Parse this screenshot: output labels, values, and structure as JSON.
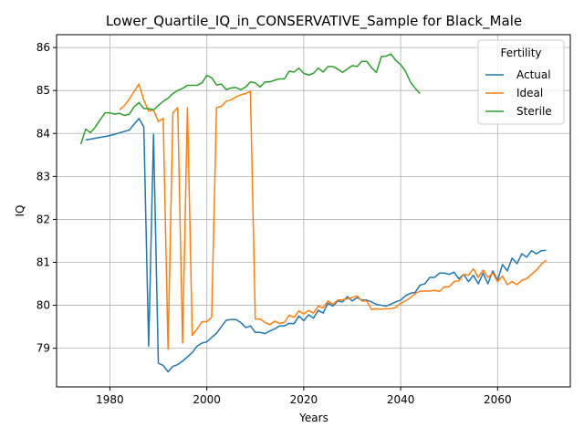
{
  "chart_data": {
    "type": "line",
    "title": "Lower_Quartile_IQ_in_CONSERVATIVE_Sample for Black_Male",
    "xlabel": "Years",
    "ylabel": "IQ",
    "xlim": [
      1969,
      2075
    ],
    "ylim": [
      78.1,
      86.3
    ],
    "xticks": [
      1980,
      2000,
      2020,
      2040,
      2060
    ],
    "yticks": [
      79,
      80,
      81,
      82,
      83,
      84,
      85,
      86
    ],
    "grid": true,
    "legend": {
      "title": "Fertility",
      "placement": "top-right"
    },
    "series": [
      {
        "name": "Actual",
        "color": "#1f77b4",
        "points": [
          [
            1975,
            83.85
          ],
          [
            1980,
            83.95
          ],
          [
            1984,
            84.08
          ],
          [
            1986,
            84.35
          ],
          [
            1987,
            84.15
          ],
          [
            1988,
            79.05
          ],
          [
            1989,
            83.98
          ],
          [
            1990,
            78.65
          ],
          [
            1991,
            78.6
          ],
          [
            1992,
            78.45
          ],
          [
            1993,
            78.58
          ],
          [
            1994,
            78.62
          ],
          [
            1995,
            78.7
          ],
          [
            1996,
            78.8
          ],
          [
            1997,
            78.9
          ],
          [
            1998,
            79.05
          ],
          [
            1999,
            79.12
          ],
          [
            2000,
            79.15
          ],
          [
            2001,
            79.25
          ],
          [
            2002,
            79.35
          ],
          [
            2003,
            79.5
          ],
          [
            2004,
            79.65
          ],
          [
            2005,
            79.67
          ],
          [
            2006,
            79.67
          ],
          [
            2007,
            79.6
          ],
          [
            2008,
            79.48
          ],
          [
            2009,
            79.52
          ],
          [
            2010,
            79.37
          ],
          [
            2011,
            79.37
          ],
          [
            2012,
            79.34
          ],
          [
            2013,
            79.4
          ],
          [
            2014,
            79.45
          ],
          [
            2015,
            79.52
          ],
          [
            2016,
            79.52
          ],
          [
            2017,
            79.58
          ],
          [
            2018,
            79.57
          ],
          [
            2019,
            79.75
          ],
          [
            2020,
            79.64
          ],
          [
            2021,
            79.78
          ],
          [
            2022,
            79.7
          ],
          [
            2023,
            79.88
          ],
          [
            2024,
            79.82
          ],
          [
            2025,
            80.05
          ],
          [
            2026,
            79.98
          ],
          [
            2027,
            80.1
          ],
          [
            2028,
            80.08
          ],
          [
            2029,
            80.2
          ],
          [
            2030,
            80.1
          ],
          [
            2031,
            80.18
          ],
          [
            2032,
            80.12
          ],
          [
            2033,
            80.12
          ],
          [
            2034,
            80.08
          ],
          [
            2035,
            80.02
          ],
          [
            2036,
            80.0
          ],
          [
            2037,
            79.98
          ],
          [
            2038,
            80.03
          ],
          [
            2039,
            80.08
          ],
          [
            2040,
            80.12
          ],
          [
            2041,
            80.22
          ],
          [
            2042,
            80.28
          ],
          [
            2043,
            80.3
          ],
          [
            2044,
            80.47
          ],
          [
            2045,
            80.5
          ],
          [
            2046,
            80.65
          ],
          [
            2047,
            80.65
          ],
          [
            2048,
            80.75
          ],
          [
            2049,
            80.75
          ],
          [
            2050,
            80.72
          ],
          [
            2051,
            80.77
          ],
          [
            2052,
            80.62
          ],
          [
            2053,
            80.72
          ],
          [
            2054,
            80.55
          ],
          [
            2055,
            80.7
          ],
          [
            2056,
            80.5
          ],
          [
            2057,
            80.75
          ],
          [
            2058,
            80.5
          ],
          [
            2059,
            80.8
          ],
          [
            2060,
            80.58
          ],
          [
            2061,
            80.95
          ],
          [
            2062,
            80.8
          ],
          [
            2063,
            81.1
          ],
          [
            2064,
            80.97
          ],
          [
            2065,
            81.2
          ],
          [
            2066,
            81.12
          ],
          [
            2067,
            81.27
          ],
          [
            2068,
            81.2
          ],
          [
            2069,
            81.27
          ],
          [
            2070,
            81.28
          ]
        ]
      },
      {
        "name": "Ideal",
        "color": "#ff7f0e",
        "points": [
          [
            1982,
            84.55
          ],
          [
            1983,
            84.65
          ],
          [
            1984,
            84.8
          ],
          [
            1985,
            84.98
          ],
          [
            1986,
            85.15
          ],
          [
            1987,
            84.78
          ],
          [
            1988,
            84.52
          ],
          [
            1989,
            84.55
          ],
          [
            1990,
            84.28
          ],
          [
            1991,
            84.35
          ],
          [
            1992,
            78.98
          ],
          [
            1993,
            84.48
          ],
          [
            1994,
            84.6
          ],
          [
            1995,
            79.12
          ],
          [
            1996,
            84.6
          ],
          [
            1997,
            79.3
          ],
          [
            1998,
            79.45
          ],
          [
            1999,
            79.62
          ],
          [
            2000,
            79.62
          ],
          [
            2001,
            79.72
          ],
          [
            2002,
            84.6
          ],
          [
            2003,
            84.63
          ],
          [
            2004,
            84.75
          ],
          [
            2005,
            84.78
          ],
          [
            2006,
            84.85
          ],
          [
            2007,
            84.9
          ],
          [
            2008,
            84.93
          ],
          [
            2009,
            84.98
          ],
          [
            2010,
            79.68
          ],
          [
            2011,
            79.68
          ],
          [
            2012,
            79.6
          ],
          [
            2013,
            79.55
          ],
          [
            2014,
            79.63
          ],
          [
            2015,
            79.58
          ],
          [
            2016,
            79.6
          ],
          [
            2017,
            79.77
          ],
          [
            2018,
            79.72
          ],
          [
            2019,
            79.87
          ],
          [
            2020,
            79.8
          ],
          [
            2021,
            79.88
          ],
          [
            2022,
            79.82
          ],
          [
            2023,
            79.98
          ],
          [
            2024,
            79.94
          ],
          [
            2025,
            80.1
          ],
          [
            2026,
            80.02
          ],
          [
            2027,
            80.12
          ],
          [
            2028,
            80.13
          ],
          [
            2029,
            80.15
          ],
          [
            2030,
            80.18
          ],
          [
            2031,
            80.22
          ],
          [
            2032,
            80.1
          ],
          [
            2033,
            80.1
          ],
          [
            2034,
            79.9
          ],
          [
            2035,
            79.92
          ],
          [
            2036,
            79.91
          ],
          [
            2037,
            79.92
          ],
          [
            2038,
            79.92
          ],
          [
            2039,
            79.95
          ],
          [
            2040,
            80.05
          ],
          [
            2041,
            80.1
          ],
          [
            2042,
            80.18
          ],
          [
            2043,
            80.27
          ],
          [
            2044,
            80.33
          ],
          [
            2045,
            80.33
          ],
          [
            2046,
            80.33
          ],
          [
            2047,
            80.35
          ],
          [
            2048,
            80.32
          ],
          [
            2049,
            80.43
          ],
          [
            2050,
            80.43
          ],
          [
            2051,
            80.55
          ],
          [
            2052,
            80.57
          ],
          [
            2053,
            80.72
          ],
          [
            2054,
            80.7
          ],
          [
            2055,
            80.85
          ],
          [
            2056,
            80.65
          ],
          [
            2057,
            80.82
          ],
          [
            2058,
            80.65
          ],
          [
            2059,
            80.75
          ],
          [
            2060,
            80.55
          ],
          [
            2061,
            80.68
          ],
          [
            2062,
            80.48
          ],
          [
            2063,
            80.55
          ],
          [
            2064,
            80.48
          ],
          [
            2065,
            80.58
          ],
          [
            2066,
            80.62
          ],
          [
            2067,
            80.72
          ],
          [
            2068,
            80.82
          ],
          [
            2069,
            80.95
          ],
          [
            2070,
            81.05
          ]
        ]
      },
      {
        "name": "Sterile",
        "color": "#2ca02c",
        "points": [
          [
            1974,
            83.75
          ],
          [
            1975,
            84.1
          ],
          [
            1976,
            84.02
          ],
          [
            1977,
            84.15
          ],
          [
            1978,
            84.32
          ],
          [
            1979,
            84.48
          ],
          [
            1980,
            84.48
          ],
          [
            1981,
            84.45
          ],
          [
            1982,
            84.47
          ],
          [
            1983,
            84.42
          ],
          [
            1984,
            84.45
          ],
          [
            1985,
            84.62
          ],
          [
            1986,
            84.72
          ],
          [
            1987,
            84.58
          ],
          [
            1988,
            84.58
          ],
          [
            1989,
            84.55
          ],
          [
            1990,
            84.65
          ],
          [
            1991,
            84.75
          ],
          [
            1992,
            84.82
          ],
          [
            1993,
            84.93
          ],
          [
            1994,
            85.0
          ],
          [
            1995,
            85.05
          ],
          [
            1996,
            85.12
          ],
          [
            1997,
            85.12
          ],
          [
            1998,
            85.12
          ],
          [
            1999,
            85.18
          ],
          [
            2000,
            85.35
          ],
          [
            2001,
            85.3
          ],
          [
            2002,
            85.13
          ],
          [
            2003,
            85.15
          ],
          [
            2004,
            85.02
          ],
          [
            2005,
            85.06
          ],
          [
            2006,
            85.07
          ],
          [
            2007,
            85.02
          ],
          [
            2008,
            85.08
          ],
          [
            2009,
            85.2
          ],
          [
            2010,
            85.18
          ],
          [
            2011,
            85.08
          ],
          [
            2012,
            85.2
          ],
          [
            2013,
            85.2
          ],
          [
            2014,
            85.24
          ],
          [
            2015,
            85.27
          ],
          [
            2016,
            85.27
          ],
          [
            2017,
            85.45
          ],
          [
            2018,
            85.43
          ],
          [
            2019,
            85.52
          ],
          [
            2020,
            85.4
          ],
          [
            2021,
            85.36
          ],
          [
            2022,
            85.4
          ],
          [
            2023,
            85.52
          ],
          [
            2024,
            85.43
          ],
          [
            2025,
            85.56
          ],
          [
            2026,
            85.56
          ],
          [
            2027,
            85.5
          ],
          [
            2028,
            85.42
          ],
          [
            2029,
            85.5
          ],
          [
            2030,
            85.58
          ],
          [
            2031,
            85.56
          ],
          [
            2032,
            85.68
          ],
          [
            2033,
            85.68
          ],
          [
            2034,
            85.53
          ],
          [
            2035,
            85.42
          ],
          [
            2036,
            85.79
          ],
          [
            2037,
            85.8
          ],
          [
            2038,
            85.85
          ],
          [
            2039,
            85.7
          ],
          [
            2040,
            85.6
          ],
          [
            2041,
            85.45
          ],
          [
            2042,
            85.2
          ],
          [
            2043,
            85.05
          ],
          [
            2044,
            84.93
          ]
        ]
      }
    ]
  }
}
